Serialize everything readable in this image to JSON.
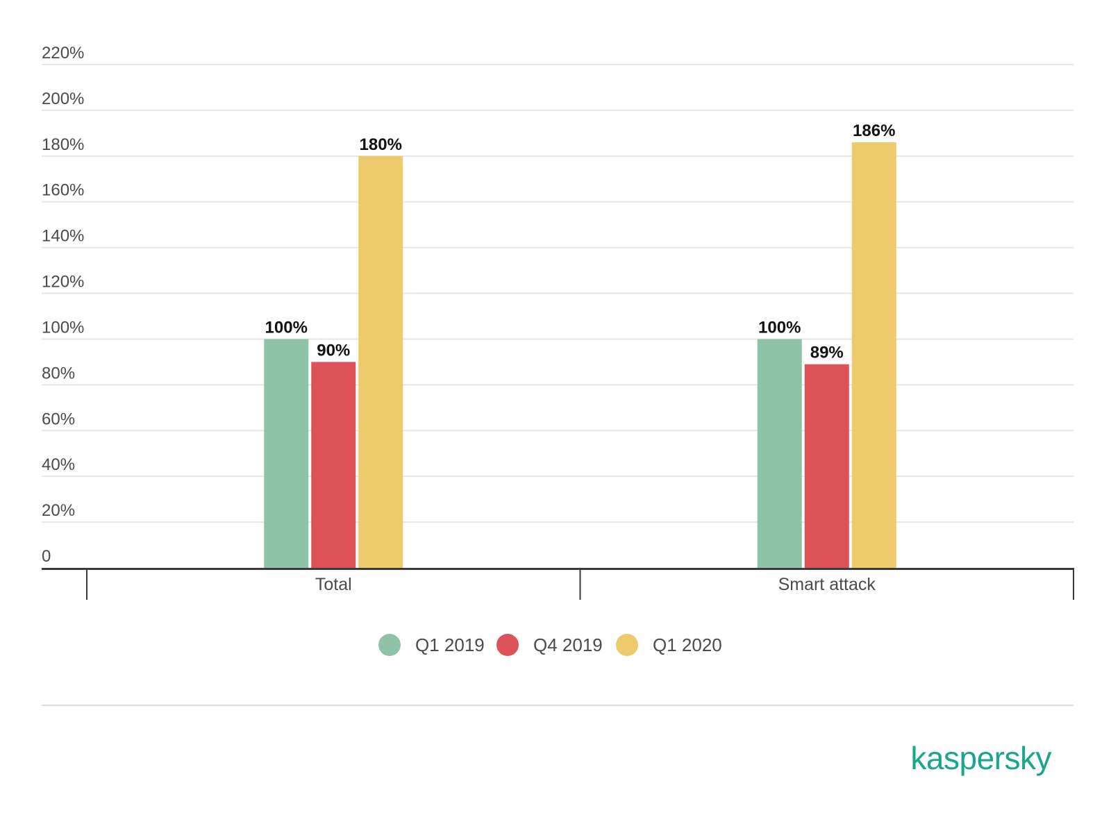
{
  "chart_data": {
    "type": "bar",
    "categories": [
      "Total",
      "Smart attack"
    ],
    "series": [
      {
        "name": "Q1 2019",
        "color": "#8fc3a8",
        "values": [
          100,
          100
        ]
      },
      {
        "name": "Q4 2019",
        "color": "#dd5258",
        "values": [
          90,
          89
        ]
      },
      {
        "name": "Q1 2020",
        "color": "#eecb6a",
        "values": [
          180,
          186
        ]
      }
    ],
    "value_labels": [
      [
        "100%",
        "100%"
      ],
      [
        "90%",
        "89%"
      ],
      [
        "180%",
        "186%"
      ]
    ],
    "y_ticks": [
      {
        "value": 0,
        "label": "0"
      },
      {
        "value": 20,
        "label": "20%"
      },
      {
        "value": 40,
        "label": "40%"
      },
      {
        "value": 60,
        "label": "60%"
      },
      {
        "value": 80,
        "label": "80%"
      },
      {
        "value": 100,
        "label": "100%"
      },
      {
        "value": 120,
        "label": "120%"
      },
      {
        "value": 140,
        "label": "140%"
      },
      {
        "value": 160,
        "label": "160%"
      },
      {
        "value": 180,
        "label": "180%"
      },
      {
        "value": 200,
        "label": "200%"
      },
      {
        "value": 220,
        "label": "220%"
      }
    ],
    "ylim": [
      0,
      220
    ],
    "grid": true,
    "legend_position": "bottom-center",
    "title": "",
    "xlabel": "",
    "ylabel": ""
  },
  "branding": {
    "logo_text": "kaspersky",
    "logo_color": "#1aa58c"
  },
  "colors": {
    "grid": "#e6e6e6",
    "axis": "#3a3a3a",
    "separator": "#dddddd"
  }
}
